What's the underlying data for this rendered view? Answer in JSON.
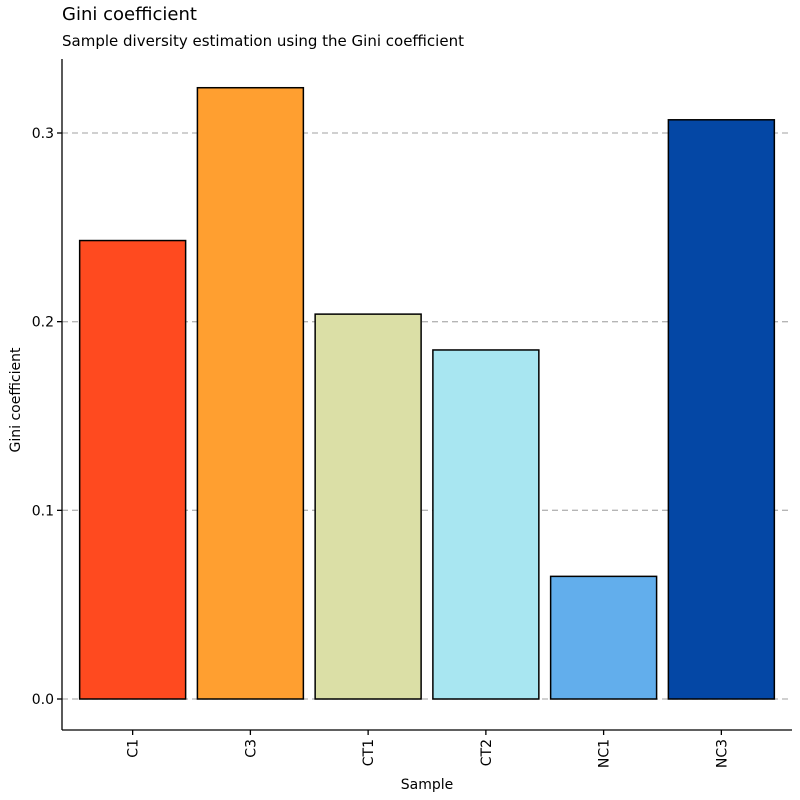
{
  "chart_data": {
    "type": "bar",
    "title": "Gini coefficient",
    "subtitle": "Sample diversity estimation using the Gini coefficient",
    "xlabel": "Sample",
    "ylabel": "Gini coefficient",
    "categories": [
      "C1",
      "C3",
      "CT1",
      "CT2",
      "NC1",
      "NC3"
    ],
    "values": [
      0.243,
      0.324,
      0.204,
      0.185,
      0.065,
      0.307
    ],
    "colors": [
      "#FF4A1F",
      "#FF9F30",
      "#DBDFA6",
      "#A8E6F1",
      "#62AEEC",
      "#0447A5"
    ],
    "yticks": [
      "0.0",
      "0.1",
      "0.2",
      "0.3"
    ],
    "ytick_values": [
      0.0,
      0.1,
      0.2,
      0.3
    ],
    "ylim": [
      -0.0165,
      0.34
    ],
    "grid": "horizontal dashed",
    "legend": "none"
  }
}
